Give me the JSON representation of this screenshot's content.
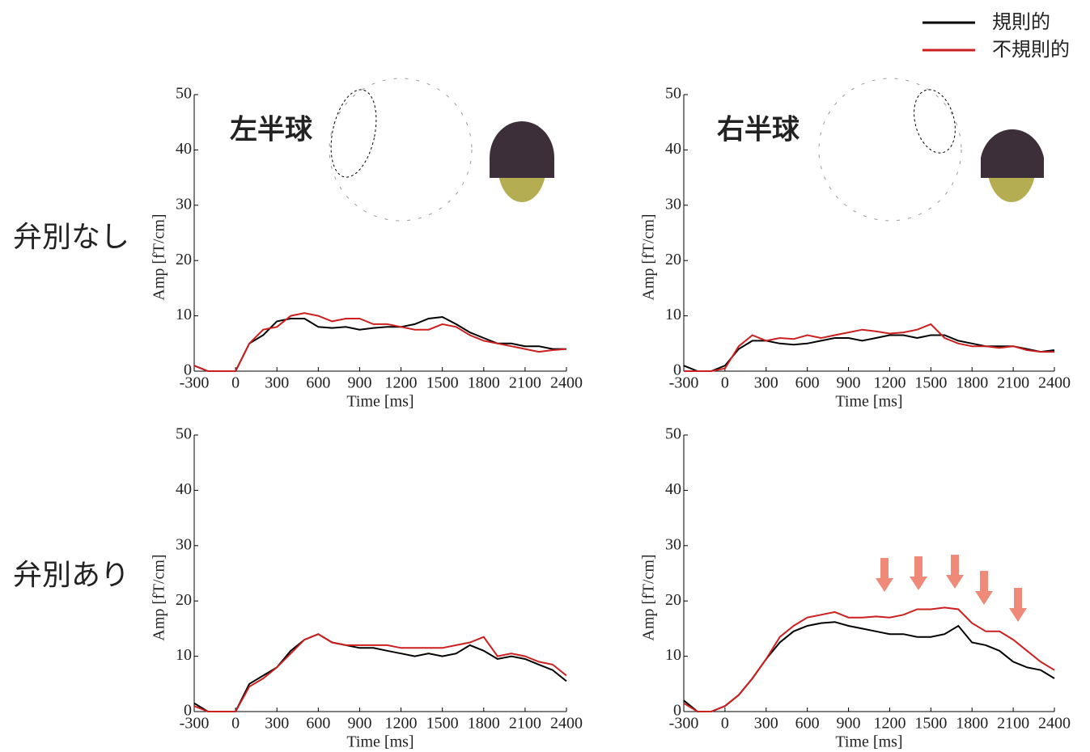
{
  "row_labels": [
    "弁別なし",
    "弁別あり"
  ],
  "chart_data": [
    {
      "type": "line",
      "annotation": "左半球",
      "xlabel": "Time [ms]",
      "ylabel": "Amp [fT/cm]",
      "x": [
        -300,
        -200,
        -100,
        0,
        100,
        200,
        300,
        400,
        500,
        600,
        700,
        800,
        900,
        1000,
        1100,
        1200,
        1300,
        1400,
        1500,
        1600,
        1700,
        1800,
        1900,
        2000,
        2100,
        2200,
        2300,
        2400
      ],
      "xlim": [
        -300,
        2400
      ],
      "xticks": [
        -300,
        0,
        300,
        600,
        900,
        1200,
        1500,
        1800,
        2100,
        2400
      ],
      "ylim": [
        0,
        50
      ],
      "yticks": [
        0,
        10,
        20,
        30,
        40,
        50
      ],
      "series": [
        {
          "name": "規則的",
          "color": "#000000",
          "values": [
            1,
            0,
            0,
            0,
            5,
            6.5,
            9,
            9.5,
            9.5,
            8,
            7.8,
            8,
            7.5,
            7.8,
            8,
            8,
            8.5,
            9.5,
            9.8,
            8.5,
            7,
            6,
            5,
            5,
            4.5,
            4.5,
            4,
            4
          ]
        },
        {
          "name": "不規則的",
          "color": "#cc1f1f",
          "values": [
            1,
            0,
            0,
            0,
            5,
            7.5,
            8,
            10,
            10.5,
            10,
            9,
            9.5,
            9.5,
            8.5,
            8.5,
            8,
            7.5,
            7.5,
            8.5,
            8,
            6.5,
            5.5,
            5,
            4.5,
            4,
            3.5,
            3.8,
            4
          ]
        }
      ]
    },
    {
      "type": "line",
      "annotation": "右半球",
      "xlabel": "Time [ms]",
      "ylabel": "Amp [fT/cm]",
      "x": [
        -300,
        -200,
        -100,
        0,
        100,
        200,
        300,
        400,
        500,
        600,
        700,
        800,
        900,
        1000,
        1100,
        1200,
        1300,
        1400,
        1500,
        1600,
        1700,
        1800,
        1900,
        2000,
        2100,
        2200,
        2300,
        2400
      ],
      "xlim": [
        -300,
        2400
      ],
      "xticks": [
        -300,
        0,
        300,
        600,
        900,
        1200,
        1500,
        1800,
        2100,
        2400
      ],
      "ylim": [
        0,
        50
      ],
      "yticks": [
        0,
        10,
        20,
        30,
        40,
        50
      ],
      "series": [
        {
          "name": "規則的",
          "color": "#000000",
          "values": [
            1,
            0,
            0,
            1,
            4,
            5.5,
            5.5,
            5,
            4.8,
            5,
            5.5,
            6,
            6,
            5.5,
            6,
            6.5,
            6.5,
            6,
            6.5,
            6.5,
            5.5,
            5,
            4.5,
            4.5,
            4.5,
            4,
            3.5,
            3.8
          ]
        },
        {
          "name": "不規則的",
          "color": "#cc1f1f",
          "values": [
            0,
            0,
            0,
            0.5,
            4.5,
            6.5,
            5.5,
            6,
            5.8,
            6.5,
            6,
            6.5,
            7,
            7.5,
            7.2,
            6.8,
            7,
            7.5,
            8.5,
            6,
            5,
            4.5,
            4.5,
            4.2,
            4.5,
            3.8,
            3.5,
            3.5
          ]
        }
      ]
    },
    {
      "type": "line",
      "xlabel": "Time [ms]",
      "ylabel": "Amp [fT/cm]",
      "x": [
        -300,
        -200,
        -100,
        0,
        100,
        200,
        300,
        400,
        500,
        600,
        700,
        800,
        900,
        1000,
        1100,
        1200,
        1300,
        1400,
        1500,
        1600,
        1700,
        1800,
        1900,
        2000,
        2100,
        2200,
        2300,
        2400
      ],
      "xlim": [
        -300,
        2400
      ],
      "xticks": [
        -300,
        0,
        300,
        600,
        900,
        1200,
        1500,
        1800,
        2100,
        2400
      ],
      "ylim": [
        0,
        50
      ],
      "yticks": [
        0,
        10,
        20,
        30,
        40,
        50
      ],
      "series": [
        {
          "name": "規則的",
          "color": "#000000",
          "values": [
            1.5,
            0,
            0,
            0,
            5,
            6.5,
            8,
            11,
            13,
            14,
            12.5,
            12,
            11.5,
            11.5,
            11,
            10.5,
            10,
            10.5,
            10,
            10.5,
            12,
            11,
            9.5,
            10,
            9.5,
            8.5,
            7.5,
            5.5
          ]
        },
        {
          "name": "不規則的",
          "color": "#cc1f1f",
          "values": [
            1,
            0,
            0,
            0,
            4.5,
            6,
            8,
            10.5,
            13,
            14,
            12.5,
            12,
            12,
            12,
            12,
            11.5,
            11.5,
            11.5,
            11.5,
            12,
            12.5,
            13.5,
            10,
            10.5,
            10,
            9,
            8.5,
            6.5
          ]
        }
      ]
    },
    {
      "type": "line",
      "xlabel": "Time [ms]",
      "ylabel": "Amp [fT/cm]",
      "x": [
        -300,
        -200,
        -100,
        0,
        100,
        200,
        300,
        400,
        500,
        600,
        700,
        800,
        900,
        1000,
        1100,
        1200,
        1300,
        1400,
        1500,
        1600,
        1700,
        1800,
        1900,
        2000,
        2100,
        2200,
        2300,
        2400
      ],
      "xlim": [
        -300,
        2400
      ],
      "xticks": [
        -300,
        0,
        300,
        600,
        900,
        1200,
        1500,
        1800,
        2100,
        2400
      ],
      "ylim": [
        0,
        50
      ],
      "yticks": [
        0,
        10,
        20,
        30,
        40,
        50
      ],
      "series": [
        {
          "name": "規則的",
          "color": "#000000",
          "values": [
            2,
            0,
            0,
            1,
            3,
            6,
            9.5,
            12.5,
            14.5,
            15.5,
            16,
            16.2,
            15.5,
            15,
            14.5,
            14,
            14,
            13.5,
            13.5,
            14,
            15.5,
            12.5,
            12,
            11,
            9,
            8,
            7.5,
            6
          ]
        },
        {
          "name": "不規則的",
          "color": "#cc1f1f",
          "values": [
            1.5,
            0,
            0,
            1,
            3,
            6,
            9.5,
            13.5,
            15.5,
            17,
            17.5,
            18,
            17,
            17,
            17.2,
            17,
            17.5,
            18.5,
            18.5,
            18.8,
            18.5,
            16,
            14.5,
            14.5,
            13,
            11,
            9,
            7.5
          ]
        }
      ]
    }
  ]
}
